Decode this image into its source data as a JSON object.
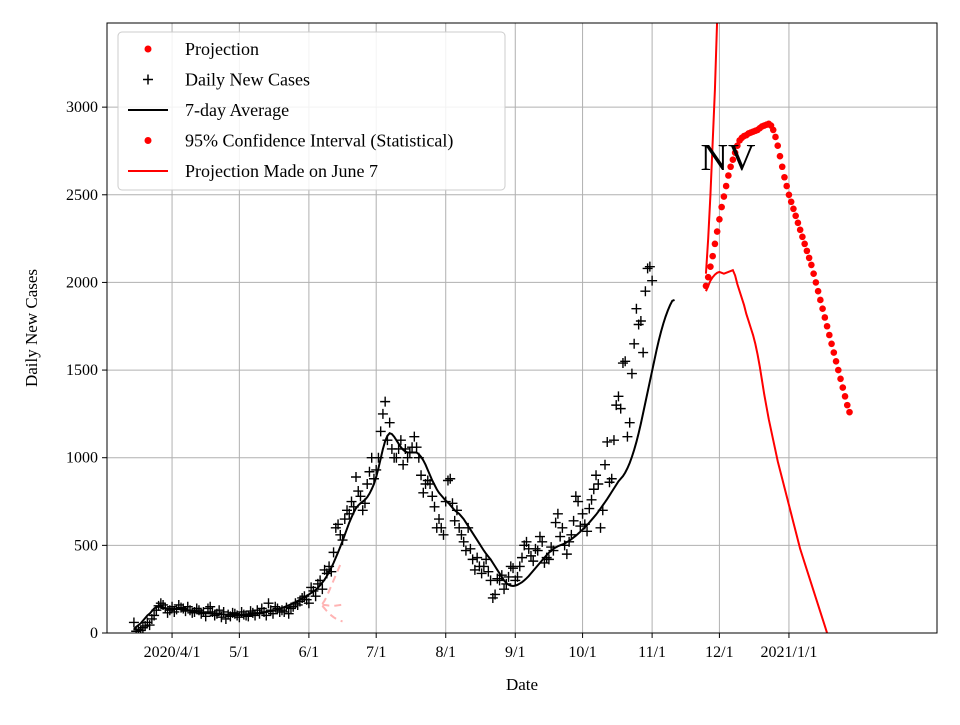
{
  "chart_data": {
    "type": "line",
    "state_label": "NV",
    "xlabel": "Date",
    "ylabel": "Daily New Cases",
    "ylim": [
      0,
      3480
    ],
    "xlim": [
      "2020-03-03",
      "2021-03-08"
    ],
    "grid": true,
    "legend_placement": "top-left",
    "x_ticks": [
      {
        "label": "2020/4/1",
        "date": "2020-04-01"
      },
      {
        "label": "5/1",
        "date": "2020-05-01"
      },
      {
        "label": "6/1",
        "date": "2020-06-01"
      },
      {
        "label": "7/1",
        "date": "2020-07-01"
      },
      {
        "label": "8/1",
        "date": "2020-08-01"
      },
      {
        "label": "9/1",
        "date": "2020-09-01"
      },
      {
        "label": "10/1",
        "date": "2020-10-01"
      },
      {
        "label": "11/1",
        "date": "2020-11-01"
      },
      {
        "label": "12/1",
        "date": "2020-12-01"
      },
      {
        "label": "2021/1/1",
        "date": "2021-01-01"
      }
    ],
    "y_ticks": [
      0,
      500,
      1000,
      1500,
      2000,
      2500,
      3000
    ],
    "legend": [
      {
        "label": "Projection",
        "symbol": "dot",
        "color": "#ff0000"
      },
      {
        "label": "Daily New Cases",
        "symbol": "plus",
        "color": "#000000"
      },
      {
        "label": "7-day Average",
        "symbol": "line",
        "color": "#000000"
      },
      {
        "label": "95% Confidence Interval (Statistical)",
        "symbol": "dot",
        "color": "#ff0000"
      },
      {
        "label": "Projection Made on June 7",
        "symbol": "line",
        "color": "#ff0000"
      }
    ],
    "series": {
      "daily_new_cases": {
        "color": "#000000",
        "start_date": "2020-03-15",
        "values": [
          60,
          10,
          20,
          15,
          30,
          40,
          60,
          45,
          80,
          100,
          130,
          155,
          170,
          160,
          140,
          115,
          130,
          150,
          120,
          135,
          160,
          145,
          140,
          125,
          150,
          130,
          115,
          120,
          140,
          130,
          110,
          120,
          95,
          140,
          150,
          120,
          100,
          110,
          130,
          90,
          120,
          80,
          105,
          95,
          115,
          110,
          100,
          90,
          120,
          105,
          100,
          95,
          125,
          115,
          100,
          130,
          110,
          140,
          120,
          100,
          170,
          130,
          110,
          150,
          140,
          120,
          130,
          120,
          145,
          110,
          140,
          150,
          170,
          160,
          180,
          200,
          210,
          190,
          170,
          260,
          240,
          210,
          280,
          300,
          250,
          360,
          340,
          380,
          350,
          460,
          600,
          620,
          560,
          530,
          650,
          700,
          680,
          750,
          720,
          890,
          810,
          780,
          700,
          740,
          850,
          920,
          1000,
          880,
          930,
          1000,
          1150,
          1250,
          1320,
          1100,
          1200,
          1050,
          1000,
          1000,
          1050,
          1100,
          960,
          1050,
          1000,
          1030,
          1060,
          1120,
          1060,
          1000,
          900,
          800,
          850,
          870,
          850,
          780,
          720,
          600,
          650,
          600,
          560,
          750,
          870,
          880,
          740,
          640,
          700,
          600,
          560,
          520,
          470,
          600,
          480,
          420,
          360,
          430,
          380,
          340,
          380,
          420,
          350,
          300,
          200,
          220,
          310,
          300,
          330,
          250,
          280,
          320,
          380,
          370,
          300,
          320,
          380,
          430,
          500,
          520,
          480,
          440,
          410,
          480,
          470,
          550,
          520,
          400,
          430,
          420,
          490,
          470,
          630,
          680,
          550,
          600,
          500,
          450,
          520,
          560,
          640,
          780,
          750,
          610,
          680,
          620,
          580,
          710,
          760,
          820,
          900,
          850,
          600,
          700,
          960,
          1090,
          860,
          880,
          1100,
          1300,
          1350,
          1280,
          1540,
          1550,
          1120,
          1200,
          1480,
          1650,
          1850,
          1760,
          1780,
          1600,
          1950,
          2080,
          2090,
          2010
        ]
      },
      "seven_day_average": {
        "color": "#000000",
        "start_date": "2020-03-15",
        "values": [
          20,
          35,
          45,
          55,
          70,
          85,
          100,
          110,
          125,
          140,
          148,
          150,
          150,
          145,
          142,
          140,
          138,
          138,
          138,
          137,
          136,
          135,
          134,
          132,
          130,
          128,
          126,
          124,
          122,
          120,
          118,
          116,
          114,
          112,
          112,
          110,
          110,
          109,
          108,
          107,
          106,
          105,
          104,
          104,
          104,
          104,
          105,
          105,
          105,
          106,
          106,
          107,
          108,
          109,
          110,
          112,
          114,
          116,
          118,
          120,
          122,
          124,
          127,
          130,
          134,
          138,
          143,
          148,
          153,
          158,
          164,
          170,
          176,
          183,
          190,
          198,
          205,
          212,
          220,
          228,
          236,
          246,
          258,
          272,
          288,
          305,
          325,
          348,
          373,
          400,
          430,
          460,
          492,
          525,
          560,
          595,
          630,
          660,
          688,
          712,
          728,
          740,
          750,
          760,
          775,
          795,
          820,
          850,
          890,
          940,
          995,
          1050,
          1095,
          1125,
          1140,
          1135,
          1120,
          1100,
          1080,
          1060,
          1045,
          1035,
          1030,
          1030,
          1030,
          1030,
          1030,
          1020,
          1005,
          985,
          960,
          930,
          900,
          870,
          845,
          820,
          800,
          785,
          770,
          755,
          745,
          730,
          715,
          700,
          690,
          680,
          665,
          650,
          630,
          610,
          590,
          570,
          550,
          530,
          510,
          490,
          470,
          452,
          436,
          420,
          400,
          380,
          360,
          340,
          320,
          300,
          285,
          275,
          270,
          268,
          270,
          275,
          282,
          290,
          300,
          312,
          325,
          340,
          355,
          370,
          385,
          400,
          415,
          430,
          445,
          458,
          470,
          480,
          488,
          495,
          500,
          505,
          510,
          518,
          526,
          535,
          545,
          555,
          566,
          578,
          590,
          603,
          616,
          630,
          645,
          660,
          675,
          692,
          710,
          728,
          746,
          765,
          785,
          805,
          825,
          845,
          865,
          880,
          895,
          915,
          940,
          970,
          1005,
          1045,
          1090,
          1140,
          1195,
          1255,
          1315,
          1375,
          1435,
          1495,
          1555,
          1615,
          1670,
          1720,
          1765,
          1805,
          1840,
          1870,
          1895,
          1900
        ]
      },
      "projection_dotted": {
        "color": "#ff0000",
        "start_date": "2020-11-25",
        "values": [
          1980,
          2030,
          2090,
          2150,
          2220,
          2290,
          2360,
          2430,
          2490,
          2550,
          2610,
          2660,
          2700,
          2740,
          2780,
          2810,
          2825,
          2835,
          2840,
          2850,
          2855,
          2860,
          2865,
          2870,
          2880,
          2890,
          2895,
          2900,
          2905,
          2895,
          2870,
          2830,
          2780,
          2720,
          2660,
          2600,
          2550,
          2500,
          2460,
          2420,
          2380,
          2340,
          2300,
          2260,
          2220,
          2180,
          2140,
          2100,
          2050,
          2000,
          1950,
          1900,
          1850,
          1800,
          1750,
          1700,
          1650,
          1600,
          1550,
          1500,
          1450,
          1400,
          1350,
          1300,
          1260
        ]
      },
      "confidence_upper": {
        "color": "#ff0000",
        "start_date": "2020-11-25",
        "values": [
          2050,
          2250,
          2500,
          2800,
          3100,
          3500
        ]
      },
      "projection_june7": {
        "color": "#ff0000",
        "start_date": "2020-11-25",
        "values": [
          1950,
          1980,
          2010,
          2030,
          2045,
          2055,
          2060,
          2055,
          2050,
          2055,
          2060,
          2065,
          2070,
          2040,
          1990,
          1950,
          1910,
          1870,
          1820,
          1780,
          1740,
          1700,
          1650,
          1590,
          1520,
          1440,
          1360,
          1290,
          1220,
          1160,
          1100,
          1040,
          980,
          930,
          880,
          830,
          780,
          730,
          680,
          630,
          580,
          530,
          480,
          440,
          400,
          360,
          320,
          280,
          240,
          200,
          160,
          120,
          80,
          40,
          0
        ]
      },
      "june7_projection_band": {
        "color": "#ffb3b3",
        "start_date": "2020-06-07",
        "upper": [
          165,
          185,
          210,
          240,
          270,
          300,
          330,
          360,
          390,
          410
        ],
        "middle": [
          160,
          160,
          158,
          156,
          155,
          155,
          156,
          158,
          160,
          162
        ],
        "lower": [
          155,
          140,
          125,
          112,
          100,
          90,
          82,
          76,
          70,
          66
        ]
      }
    }
  }
}
